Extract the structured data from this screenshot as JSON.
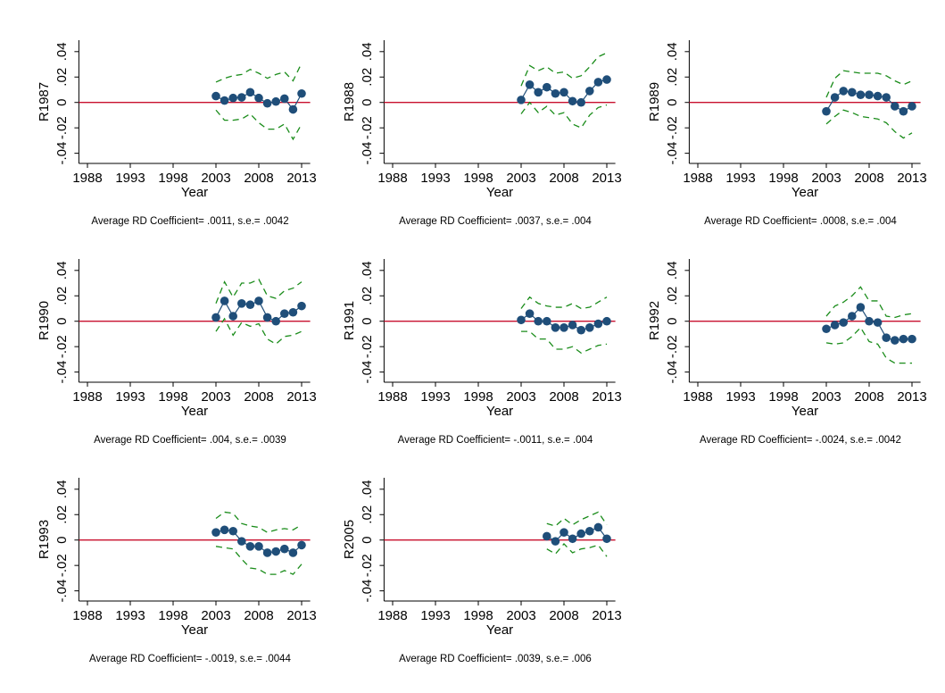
{
  "chart_data": [
    {
      "type": "line",
      "y_label": "R1987",
      "x_label": "Year",
      "note": "Average RD Coefficient= .0011, s.e.= .0042",
      "x": [
        2003,
        2004,
        2005,
        2006,
        2007,
        2008,
        2009,
        2010,
        2011,
        2012,
        2013
      ],
      "series": [
        {
          "color": "#1f4e79",
          "style": "solid",
          "marker": true,
          "values": [
            0.005,
            0.0015,
            0.0035,
            0.004,
            0.008,
            0.0035,
            -0.0007,
            0.0007,
            0.003,
            -0.0055,
            0.007
          ]
        },
        {
          "color": "#1a8c1a",
          "style": "dash",
          "marker": false,
          "values": [
            0.016,
            0.019,
            0.021,
            0.022,
            0.026,
            0.023,
            0.019,
            0.022,
            0.024,
            0.017,
            0.031
          ]
        },
        {
          "color": "#1a8c1a",
          "style": "dash",
          "marker": false,
          "values": [
            -0.006,
            -0.014,
            -0.014,
            -0.013,
            -0.009,
            -0.016,
            -0.021,
            -0.021,
            -0.017,
            -0.029,
            -0.017
          ]
        }
      ],
      "xlim": [
        1987,
        2014
      ],
      "xticks": [
        1988,
        1993,
        1998,
        2003,
        2008,
        2013
      ],
      "ylim": [
        -0.048,
        0.049
      ],
      "yticks": [
        {
          "value": -0.04,
          "label": "-.04"
        },
        {
          "value": -0.02,
          "label": "-.02"
        },
        0,
        {
          "value": 0.02,
          "label": ".02"
        },
        {
          "value": 0.04,
          "label": ".04"
        }
      ],
      "refline": 0,
      "refline_color": "#c8102e"
    },
    {
      "type": "line",
      "y_label": "R1988",
      "x_label": "Year",
      "note": "Average RD Coefficient= .0037, s.e.= .004",
      "x": [
        2003,
        2004,
        2005,
        2006,
        2007,
        2008,
        2009,
        2010,
        2011,
        2012,
        2013
      ],
      "series": [
        {
          "color": "#1f4e79",
          "style": "solid",
          "marker": true,
          "values": [
            0.002,
            0.014,
            0.008,
            0.012,
            0.007,
            0.008,
            0.001,
            0,
            0.009,
            0.016,
            0.018
          ]
        },
        {
          "color": "#1a8c1a",
          "style": "dash",
          "marker": false,
          "values": [
            0.013,
            0.029,
            0.025,
            0.028,
            0.023,
            0.024,
            0.019,
            0.021,
            0.028,
            0.036,
            0.039
          ]
        },
        {
          "color": "#1a8c1a",
          "style": "dash",
          "marker": false,
          "values": [
            -0.009,
            0,
            -0.008,
            -0.003,
            -0.01,
            -0.008,
            -0.017,
            -0.02,
            -0.01,
            -0.004,
            -0.002
          ]
        }
      ],
      "xlim": [
        1987,
        2014
      ],
      "xticks": [
        1988,
        1993,
        1998,
        2003,
        2008,
        2013
      ],
      "ylim": [
        -0.048,
        0.049
      ],
      "yticks": [
        {
          "value": -0.04,
          "label": "-.04"
        },
        {
          "value": -0.02,
          "label": "-.02"
        },
        0,
        {
          "value": 0.02,
          "label": ".02"
        },
        {
          "value": 0.04,
          "label": ".04"
        }
      ],
      "refline": 0,
      "refline_color": "#c8102e"
    },
    {
      "type": "line",
      "y_label": "R1989",
      "x_label": "Year",
      "note": "Average RD Coefficient= .0008, s.e.= .004",
      "x": [
        2003,
        2004,
        2005,
        2006,
        2007,
        2008,
        2009,
        2010,
        2011,
        2012,
        2013
      ],
      "series": [
        {
          "color": "#1f4e79",
          "style": "solid",
          "marker": true,
          "values": [
            -0.007,
            0.004,
            0.009,
            0.008,
            0.006,
            0.006,
            0.005,
            0.004,
            -0.003,
            -0.007,
            -0.003
          ]
        },
        {
          "color": "#1a8c1a",
          "style": "dash",
          "marker": false,
          "values": [
            0.004,
            0.019,
            0.025,
            0.024,
            0.023,
            0.023,
            0.023,
            0.021,
            0.017,
            0.014,
            0.017
          ]
        },
        {
          "color": "#1a8c1a",
          "style": "dash",
          "marker": false,
          "values": [
            -0.017,
            -0.011,
            -0.006,
            -0.008,
            -0.011,
            -0.012,
            -0.013,
            -0.016,
            -0.023,
            -0.028,
            -0.024
          ]
        }
      ],
      "xlim": [
        1987,
        2014
      ],
      "xticks": [
        1988,
        1993,
        1998,
        2003,
        2008,
        2013
      ],
      "ylim": [
        -0.048,
        0.049
      ],
      "yticks": [
        {
          "value": -0.04,
          "label": "-.04"
        },
        {
          "value": -0.02,
          "label": "-.02"
        },
        0,
        {
          "value": 0.02,
          "label": ".02"
        },
        {
          "value": 0.04,
          "label": ".04"
        }
      ],
      "refline": 0,
      "refline_color": "#c8102e"
    },
    {
      "type": "line",
      "y_label": "R1990",
      "x_label": "Year",
      "note": "Average RD Coefficient= .004, s.e.= .0039",
      "x": [
        2003,
        2004,
        2005,
        2006,
        2007,
        2008,
        2009,
        2010,
        2011,
        2012,
        2013
      ],
      "series": [
        {
          "color": "#1f4e79",
          "style": "solid",
          "marker": true,
          "values": [
            0.003,
            0.016,
            0.004,
            0.014,
            0.013,
            0.016,
            0.003,
            0,
            0.006,
            0.007,
            0.012
          ]
        },
        {
          "color": "#1a8c1a",
          "style": "dash",
          "marker": false,
          "values": [
            0.014,
            0.031,
            0.019,
            0.03,
            0.03,
            0.033,
            0.02,
            0.018,
            0.024,
            0.026,
            0.031
          ]
        },
        {
          "color": "#1a8c1a",
          "style": "dash",
          "marker": false,
          "values": [
            -0.008,
            0.002,
            -0.011,
            -0.001,
            -0.004,
            -0.002,
            -0.014,
            -0.018,
            -0.012,
            -0.011,
            -0.008
          ]
        }
      ],
      "xlim": [
        1987,
        2014
      ],
      "xticks": [
        1988,
        1993,
        1998,
        2003,
        2008,
        2013
      ],
      "ylim": [
        -0.048,
        0.049
      ],
      "yticks": [
        {
          "value": -0.04,
          "label": "-.04"
        },
        {
          "value": -0.02,
          "label": "-.02"
        },
        0,
        {
          "value": 0.02,
          "label": ".02"
        },
        {
          "value": 0.04,
          "label": ".04"
        }
      ],
      "refline": 0,
      "refline_color": "#c8102e"
    },
    {
      "type": "line",
      "y_label": "R1991",
      "x_label": "Year",
      "note": "Average RD Coefficient= -.0011, s.e.= .004",
      "x": [
        2003,
        2004,
        2005,
        2006,
        2007,
        2008,
        2009,
        2010,
        2011,
        2012,
        2013
      ],
      "series": [
        {
          "color": "#1f4e79",
          "style": "solid",
          "marker": true,
          "values": [
            0.001,
            0.006,
            0,
            0,
            -0.005,
            -0.005,
            -0.003,
            -0.007,
            -0.005,
            -0.002,
            0
          ]
        },
        {
          "color": "#1a8c1a",
          "style": "dash",
          "marker": false,
          "values": [
            0.01,
            0.019,
            0.014,
            0.012,
            0.011,
            0.011,
            0.014,
            0.01,
            0.011,
            0.015,
            0.019
          ]
        },
        {
          "color": "#1a8c1a",
          "style": "dash",
          "marker": false,
          "values": [
            -0.008,
            -0.008,
            -0.014,
            -0.014,
            -0.022,
            -0.022,
            -0.02,
            -0.025,
            -0.022,
            -0.019,
            -0.018
          ]
        }
      ],
      "xlim": [
        1987,
        2014
      ],
      "xticks": [
        1988,
        1993,
        1998,
        2003,
        2008,
        2013
      ],
      "ylim": [
        -0.048,
        0.049
      ],
      "yticks": [
        {
          "value": -0.04,
          "label": "-.04"
        },
        {
          "value": -0.02,
          "label": "-.02"
        },
        0,
        {
          "value": 0.02,
          "label": ".02"
        },
        {
          "value": 0.04,
          "label": ".04"
        }
      ],
      "refline": 0,
      "refline_color": "#c8102e"
    },
    {
      "type": "line",
      "y_label": "R1992",
      "x_label": "Year",
      "note": "Average RD Coefficient= -.0024, s.e.= .0042",
      "x": [
        2003,
        2004,
        2005,
        2006,
        2007,
        2008,
        2009,
        2010,
        2011,
        2012,
        2013
      ],
      "series": [
        {
          "color": "#1f4e79",
          "style": "solid",
          "marker": true,
          "values": [
            -0.006,
            -0.003,
            -0.001,
            0.004,
            0.011,
            0,
            -0.001,
            -0.013,
            -0.015,
            -0.014,
            -0.014
          ]
        },
        {
          "color": "#1a8c1a",
          "style": "dash",
          "marker": false,
          "values": [
            0.004,
            0.012,
            0.015,
            0.02,
            0.027,
            0.016,
            0.016,
            0.004,
            0.003,
            0.005,
            0.006
          ]
        },
        {
          "color": "#1a8c1a",
          "style": "dash",
          "marker": false,
          "values": [
            -0.017,
            -0.018,
            -0.017,
            -0.012,
            -0.005,
            -0.016,
            -0.018,
            -0.029,
            -0.033,
            -0.033,
            -0.033
          ]
        }
      ],
      "xlim": [
        1987,
        2014
      ],
      "xticks": [
        1988,
        1993,
        1998,
        2003,
        2008,
        2013
      ],
      "ylim": [
        -0.048,
        0.049
      ],
      "yticks": [
        {
          "value": -0.04,
          "label": "-.04"
        },
        {
          "value": -0.02,
          "label": "-.02"
        },
        0,
        {
          "value": 0.02,
          "label": ".02"
        },
        {
          "value": 0.04,
          "label": ".04"
        }
      ],
      "refline": 0,
      "refline_color": "#c8102e"
    },
    {
      "type": "line",
      "y_label": "R1993",
      "x_label": "Year",
      "note": "Average RD Coefficient= -.0019, s.e.= .0044",
      "x": [
        2003,
        2004,
        2005,
        2006,
        2007,
        2008,
        2009,
        2010,
        2011,
        2012,
        2013
      ],
      "series": [
        {
          "color": "#1f4e79",
          "style": "solid",
          "marker": true,
          "values": [
            0.006,
            0.008,
            0.007,
            -0.001,
            -0.005,
            -0.005,
            -0.01,
            -0.009,
            -0.007,
            -0.01,
            -0.004
          ]
        },
        {
          "color": "#1a8c1a",
          "style": "dash",
          "marker": false,
          "values": [
            0.017,
            0.022,
            0.021,
            0.013,
            0.011,
            0.01,
            0.006,
            0.008,
            0.009,
            0.008,
            0.012
          ]
        },
        {
          "color": "#1a8c1a",
          "style": "dash",
          "marker": false,
          "values": [
            -0.005,
            -0.006,
            -0.007,
            -0.015,
            -0.022,
            -0.023,
            -0.027,
            -0.027,
            -0.024,
            -0.027,
            -0.019
          ]
        }
      ],
      "xlim": [
        1987,
        2014
      ],
      "xticks": [
        1988,
        1993,
        1998,
        2003,
        2008,
        2013
      ],
      "ylim": [
        -0.048,
        0.049
      ],
      "yticks": [
        {
          "value": -0.04,
          "label": "-.04"
        },
        {
          "value": -0.02,
          "label": "-.02"
        },
        0,
        {
          "value": 0.02,
          "label": ".02"
        },
        {
          "value": 0.04,
          "label": ".04"
        }
      ],
      "refline": 0,
      "refline_color": "#c8102e"
    },
    {
      "type": "line",
      "y_label": "R2005",
      "x_label": "Year",
      "note": "Average RD Coefficient= .0039, s.e.= .006",
      "x": [
        2006,
        2007,
        2008,
        2009,
        2010,
        2011,
        2012,
        2013
      ],
      "series": [
        {
          "color": "#1f4e79",
          "style": "solid",
          "marker": true,
          "values": [
            0.003,
            -0.001,
            0.006,
            0.001,
            0.005,
            0.007,
            0.01,
            0.001
          ]
        },
        {
          "color": "#1a8c1a",
          "style": "dash",
          "marker": false,
          "values": [
            0.013,
            0.011,
            0.017,
            0.012,
            0.016,
            0.019,
            0.022,
            0.012
          ]
        },
        {
          "color": "#1a8c1a",
          "style": "dash",
          "marker": false,
          "values": [
            -0.007,
            -0.011,
            -0.003,
            -0.01,
            -0.007,
            -0.006,
            -0.004,
            -0.013
          ]
        }
      ],
      "xlim": [
        1987,
        2014
      ],
      "xticks": [
        1988,
        1993,
        1998,
        2003,
        2008,
        2013
      ],
      "ylim": [
        -0.048,
        0.049
      ],
      "yticks": [
        {
          "value": -0.04,
          "label": "-.04"
        },
        {
          "value": -0.02,
          "label": "-.02"
        },
        0,
        {
          "value": 0.02,
          "label": ".02"
        },
        {
          "value": 0.04,
          "label": ".04"
        }
      ],
      "refline": 0,
      "refline_color": "#c8102e"
    }
  ]
}
